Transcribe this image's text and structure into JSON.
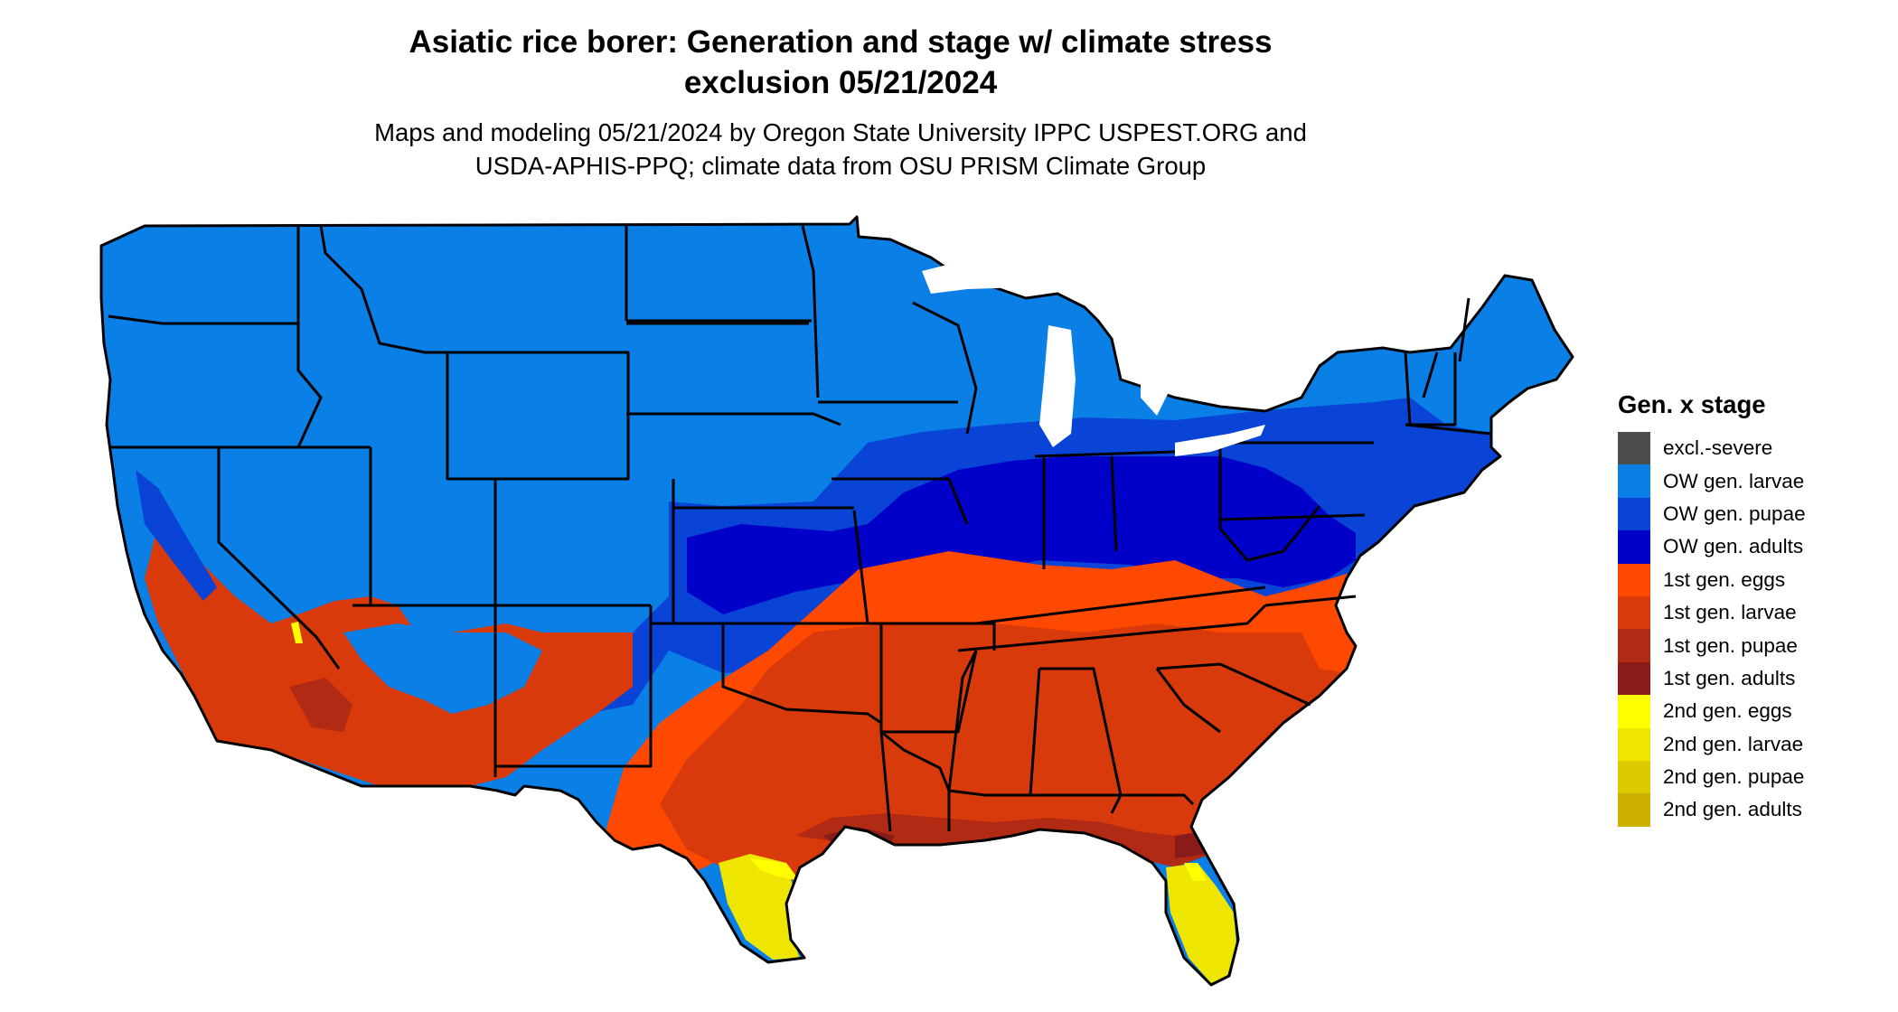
{
  "title": {
    "line1": "Asiatic rice borer: Generation and stage w/ climate stress",
    "line2": "exclusion 05/21/2024"
  },
  "subtitle": {
    "line1": "Maps and modeling 05/21/2024 by Oregon State University IPPC USPEST.ORG and",
    "line2": "USDA-APHIS-PPQ; climate data from OSU PRISM Climate Group"
  },
  "legend": {
    "title": "Gen. x stage",
    "items": [
      {
        "label": "excl.-severe",
        "color": "#4d4d4d"
      },
      {
        "label": "OW gen. larvae",
        "color": "#0a7fe6"
      },
      {
        "label": "OW gen. pupae",
        "color": "#0a44d6"
      },
      {
        "label": "OW gen. adults",
        "color": "#0000c8"
      },
      {
        "label": "1st gen. eggs",
        "color": "#ff4800"
      },
      {
        "label": "1st gen. larvae",
        "color": "#d93a0b"
      },
      {
        "label": "1st gen. pupae",
        "color": "#b02a14"
      },
      {
        "label": "1st gen. adults",
        "color": "#8a1b1b"
      },
      {
        "label": "2nd gen. eggs",
        "color": "#ffff00"
      },
      {
        "label": "2nd gen. larvae",
        "color": "#eee500"
      },
      {
        "label": "2nd gen. pupae",
        "color": "#ddca00"
      },
      {
        "label": "2nd gen. adults",
        "color": "#cdb000"
      }
    ]
  }
}
